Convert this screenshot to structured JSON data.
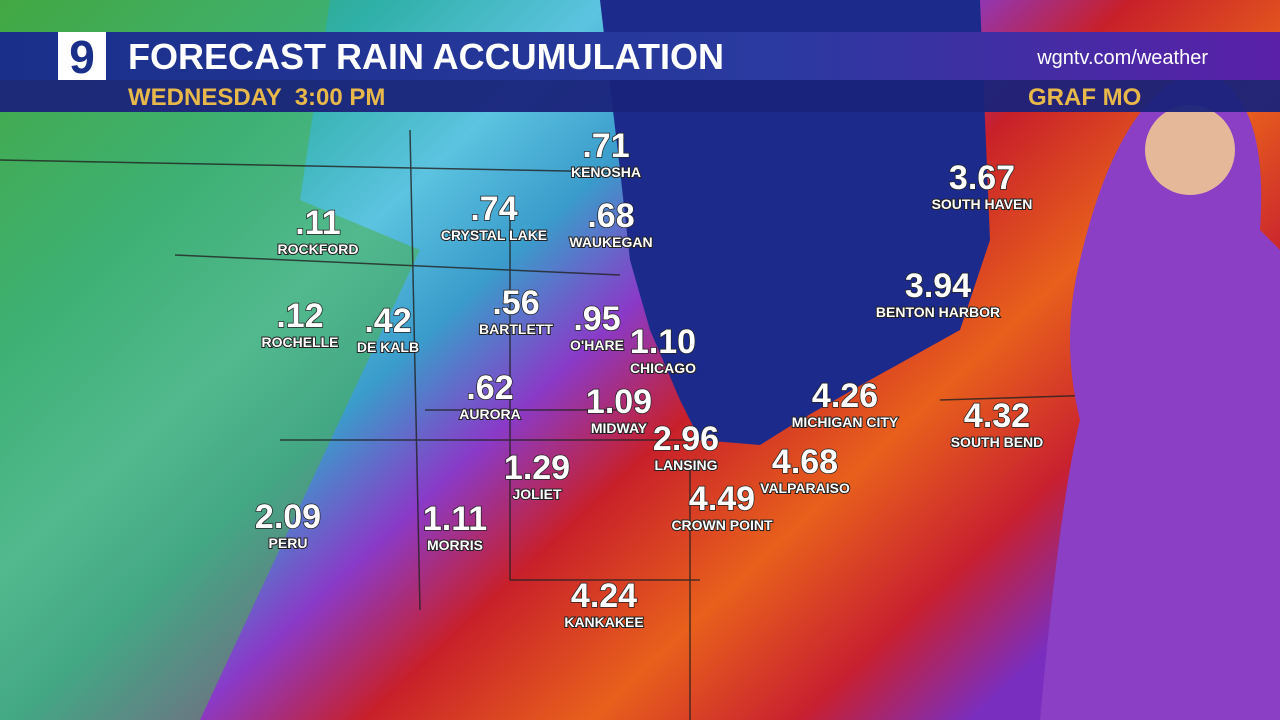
{
  "header": {
    "logo": "9",
    "title": "FORECAST RAIN ACCUMULATION",
    "website": "wgntv.com/weather",
    "day_time": "WEDNESDAY  3:00 PM",
    "presenter": "GRAF MO"
  },
  "cities": [
    {
      "value": ".71",
      "name": "KENOSHA"
    },
    {
      "value": ".11",
      "name": "ROCKFORD"
    },
    {
      "value": ".74",
      "name": "CRYSTAL LAKE"
    },
    {
      "value": ".68",
      "name": "WAUKEGAN"
    },
    {
      "value": "3.67",
      "name": "SOUTH HAVEN"
    },
    {
      "value": "3.94",
      "name": "BENTON HARBOR"
    },
    {
      "value": ".12",
      "name": "ROCHELLE"
    },
    {
      "value": ".42",
      "name": "DE KALB"
    },
    {
      "value": ".56",
      "name": "BARTLETT"
    },
    {
      "value": ".95",
      "name": "O'HARE"
    },
    {
      "value": "1.10",
      "name": "CHICAGO"
    },
    {
      "value": ".62",
      "name": "AURORA"
    },
    {
      "value": "1.09",
      "name": "MIDWAY"
    },
    {
      "value": "4.26",
      "name": "MICHIGAN CITY"
    },
    {
      "value": "4.32",
      "name": "SOUTH BEND"
    },
    {
      "value": "2.96",
      "name": "LANSING"
    },
    {
      "value": "4.68",
      "name": "VALPARAISO"
    },
    {
      "value": "1.29",
      "name": "JOLIET"
    },
    {
      "value": "4.49",
      "name": "CROWN POINT"
    },
    {
      "value": "2.09",
      "name": "PERU"
    },
    {
      "value": "1.11",
      "name": "MORRIS"
    },
    {
      "value": "4.24",
      "name": "KANKAKEE"
    }
  ]
}
